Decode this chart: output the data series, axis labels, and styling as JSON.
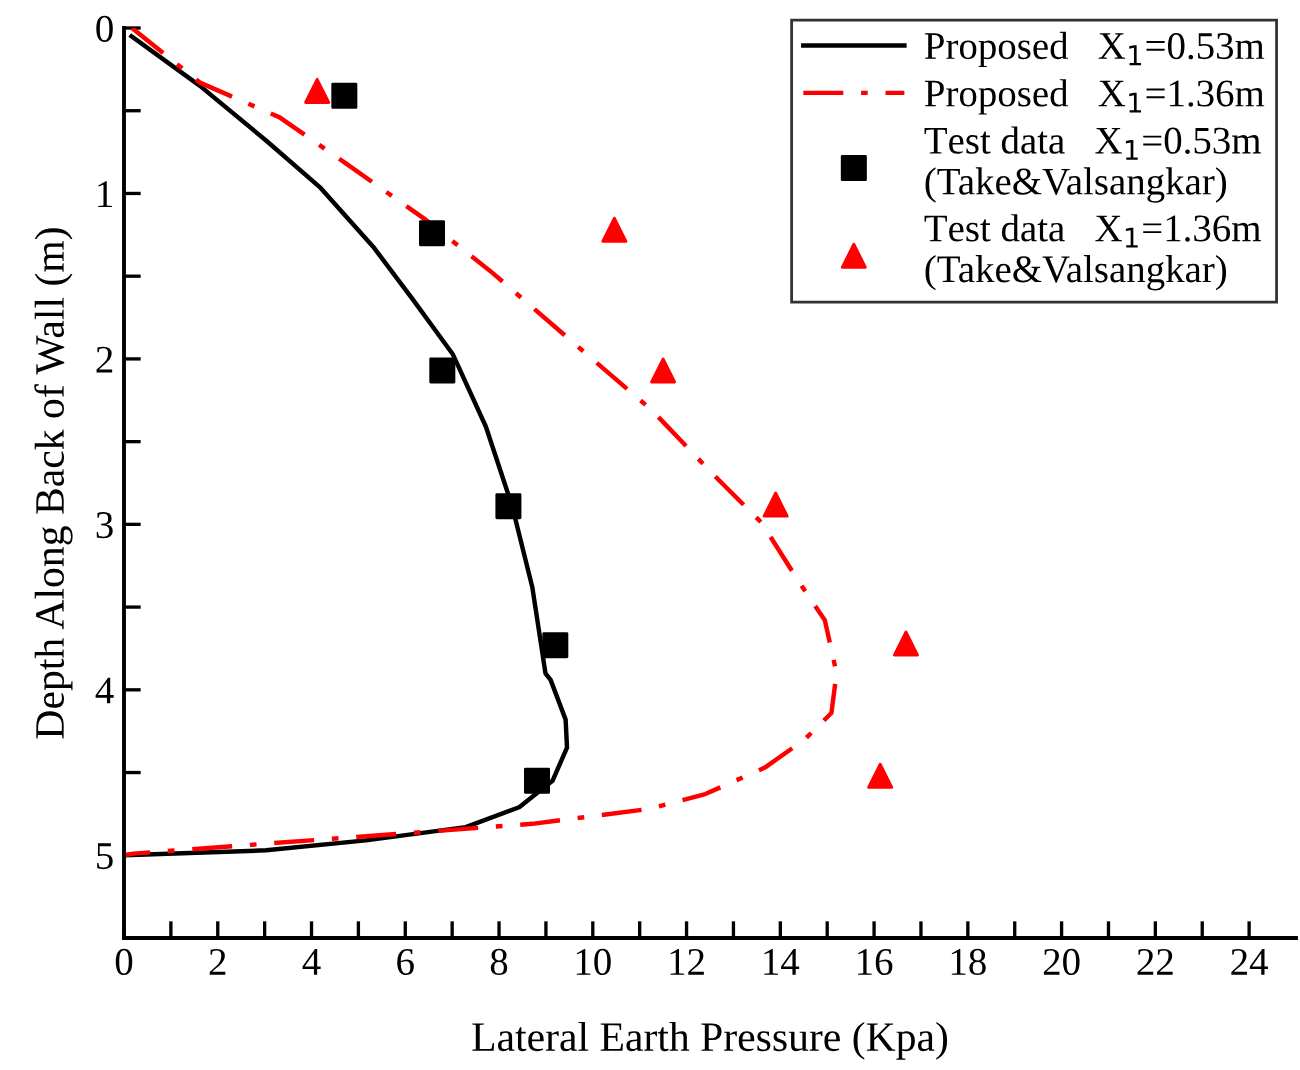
{
  "chart_data": {
    "type": "line",
    "xlabel": "Lateral Earth Pressure (Kpa)",
    "ylabel": "Depth Along Back of Wall (m)",
    "xlim": [
      0,
      25
    ],
    "ylim": [
      5.5,
      0
    ],
    "xticks": [
      0,
      {
        "value": 1,
        "label": null
      },
      2,
      {
        "value": 3,
        "label": null
      },
      4,
      {
        "value": 5,
        "label": null
      },
      6,
      {
        "value": 7,
        "label": null
      },
      8,
      {
        "value": 9,
        "label": null
      },
      10,
      {
        "value": 11,
        "label": null
      },
      12,
      {
        "value": 13,
        "label": null
      },
      14,
      {
        "value": 15,
        "label": null
      },
      16,
      {
        "value": 17,
        "label": null
      },
      18,
      {
        "value": 19,
        "label": null
      },
      20,
      {
        "value": 21,
        "label": null
      },
      22,
      {
        "value": 23,
        "label": null
      },
      24
    ],
    "yticks": [
      0,
      {
        "value": 0.5,
        "label": null
      },
      1,
      {
        "value": 1.5,
        "label": null
      },
      2,
      {
        "value": 2.5,
        "label": null
      },
      3,
      {
        "value": 3.5,
        "label": null
      },
      4,
      {
        "value": 4.5,
        "label": null
      },
      5
    ],
    "grid": false,
    "legend": "top right",
    "series": [
      {
        "name": "Proposed   X$_{1}$=0.53m",
        "color": "#000000",
        "line_style": "solid",
        "marker": "none",
        "x": [
          0.16,
          1.62,
          3.03,
          4.17,
          5.31,
          6.16,
          7.01,
          7.72,
          8.28,
          8.71,
          8.99,
          9.1,
          9.42,
          9.45,
          9.14,
          8.43,
          7.29,
          5.16,
          3.03,
          0
        ],
        "values": [
          0.05,
          0.35,
          0.68,
          0.96,
          1.32,
          1.64,
          1.97,
          2.41,
          2.89,
          3.38,
          3.9,
          3.94,
          4.18,
          4.35,
          4.55,
          4.71,
          4.83,
          4.91,
          4.97,
          5.0
        ]
      },
      {
        "name": "Proposed   X$_{1}$=1.36m",
        "color": "#ff0000",
        "line_style": "dashdot",
        "marker": "none",
        "x": [
          0.17,
          1.62,
          3.32,
          4.74,
          6.44,
          7.86,
          9.7,
          11.26,
          12.54,
          13.6,
          14.38,
          14.95,
          15.2,
          15.09,
          14.52,
          13.67,
          12.4,
          11.2,
          8.71,
          5.87,
          3.03,
          0.2,
          0
        ],
        "values": [
          0.0,
          0.33,
          0.54,
          0.82,
          1.16,
          1.48,
          1.93,
          2.31,
          2.69,
          2.99,
          3.34,
          3.58,
          3.9,
          4.14,
          4.3,
          4.47,
          4.63,
          4.72,
          4.81,
          4.87,
          4.93,
          4.99,
          5.0
        ]
      },
      {
        "name": "Test data   X$_{1}$=0.53m\n(Take&Valsangkar)",
        "type": "scatter",
        "color": "#000000",
        "marker": "square",
        "x": [
          4.7,
          6.57,
          6.79,
          8.2,
          9.2,
          8.81
        ],
        "values": [
          0.41,
          1.24,
          2.07,
          2.89,
          3.73,
          4.55
        ]
      },
      {
        "name": "Test data   X$_{1}$=1.36m\n(Take&Valsangkar)",
        "type": "scatter",
        "color": "#ff0000",
        "marker": "triangle",
        "x": [
          4.12,
          10.46,
          11.5,
          13.9,
          16.68,
          16.13
        ],
        "values": [
          0.38,
          1.22,
          2.07,
          2.88,
          3.72,
          4.52
        ]
      }
    ]
  }
}
